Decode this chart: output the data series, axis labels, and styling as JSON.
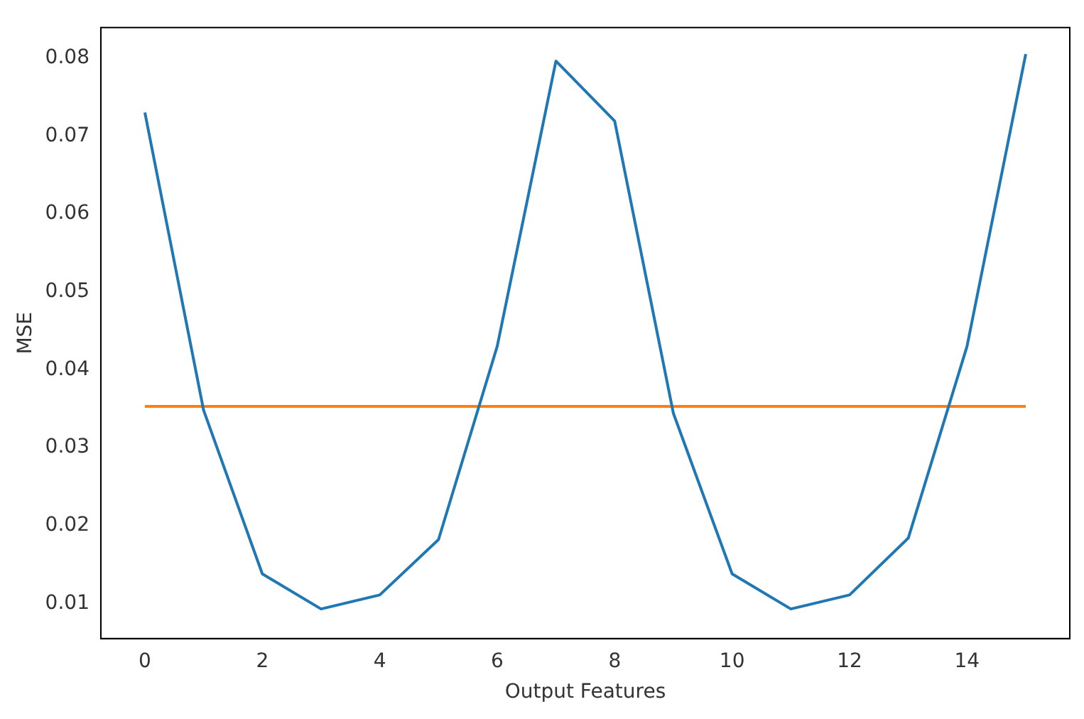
{
  "chart_data": {
    "type": "line",
    "xlabel": "Output Features",
    "ylabel": "MSE",
    "x": [
      0,
      1,
      2,
      3,
      4,
      5,
      6,
      7,
      8,
      9,
      10,
      11,
      12,
      13,
      14,
      15
    ],
    "series": [
      {
        "color": "#1f77b4",
        "values": [
          0.073,
          0.0348,
          0.0138,
          0.0093,
          0.0111,
          0.0182,
          0.043,
          0.0796,
          0.0719,
          0.0344,
          0.0138,
          0.0093,
          0.0111,
          0.0184,
          0.043,
          0.0805
        ]
      },
      {
        "color": "#ff7f0e",
        "x": [
          0,
          15
        ],
        "values": [
          0.0353,
          0.0353
        ]
      }
    ],
    "xlim": [
      -0.75,
      15.75
    ],
    "ylim": [
      0.0055,
      0.0839
    ],
    "xticks": [
      0,
      2,
      4,
      6,
      8,
      10,
      12,
      14
    ],
    "yticks": [
      0.01,
      0.02,
      0.03,
      0.04,
      0.05,
      0.06,
      0.07,
      0.08
    ],
    "grid": false,
    "legend": false,
    "marker": "none",
    "line_style": "solid"
  }
}
